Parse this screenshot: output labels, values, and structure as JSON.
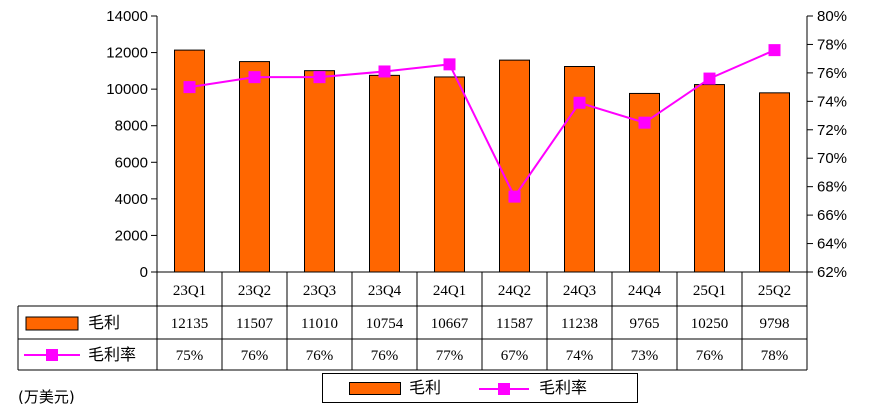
{
  "chart_data": {
    "type": "bar",
    "categories": [
      "23Q1",
      "23Q2",
      "23Q3",
      "23Q4",
      "24Q1",
      "24Q2",
      "24Q3",
      "24Q4",
      "25Q1",
      "25Q2"
    ],
    "series": [
      {
        "name": "毛利",
        "type": "bar",
        "axis": "left",
        "color": "#ff6600",
        "values": [
          12135,
          11507,
          11010,
          10754,
          10667,
          11587,
          11238,
          9765,
          10250,
          9798
        ],
        "table_labels": [
          "12135",
          "11507",
          "11010",
          "10754",
          "10667",
          "11587",
          "11238",
          "9765",
          "10250",
          "9798"
        ]
      },
      {
        "name": "毛利率",
        "type": "line",
        "axis": "right",
        "color": "#ff00ff",
        "values": [
          75.0,
          75.7,
          75.7,
          76.1,
          76.6,
          67.3,
          73.9,
          72.5,
          75.6,
          77.6
        ],
        "table_labels": [
          "75%",
          "76%",
          "76%",
          "76%",
          "77%",
          "67%",
          "74%",
          "73%",
          "76%",
          "78%"
        ]
      }
    ],
    "y_left": {
      "ylim": [
        0,
        14000
      ],
      "ticks": [
        "0",
        "2000",
        "4000",
        "6000",
        "8000",
        "10000",
        "12000",
        "14000"
      ]
    },
    "y_right": {
      "ylim": [
        62,
        80
      ],
      "ticks": [
        "62%",
        "64%",
        "66%",
        "68%",
        "70%",
        "72%",
        "74%",
        "76%",
        "78%",
        "80%"
      ]
    },
    "unit_label": "(万美元)",
    "legend_position": "bottom",
    "grid": false,
    "data_table": true
  }
}
